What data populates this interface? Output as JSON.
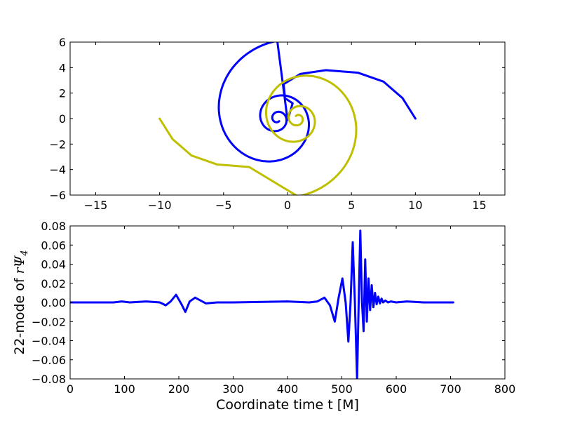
{
  "chart_data": [
    {
      "type": "line",
      "title": "",
      "xlabel": "",
      "ylabel": "",
      "xlim": [
        -17,
        17
      ],
      "ylim": [
        -6,
        6
      ],
      "xticks": [
        -15,
        -10,
        -5,
        0,
        5,
        10,
        15
      ],
      "xtick_labels": [
        "−15",
        "−10",
        "−5",
        "0",
        "5",
        "10",
        "15"
      ],
      "yticks": [
        -6,
        -4,
        -2,
        0,
        2,
        4,
        6
      ],
      "ytick_labels": [
        "−6",
        "−4",
        "−2",
        "0",
        "2",
        "4",
        "6"
      ],
      "grid": false,
      "series": [
        {
          "color": "#0000ff",
          "points": [
            [
              10.0,
              0.0
            ],
            [
              9.0,
              1.6
            ],
            [
              7.5,
              2.9
            ],
            [
              5.5,
              3.6
            ],
            [
              3.0,
              3.8
            ],
            [
              1.0,
              3.5
            ],
            [
              -0.3,
              2.7
            ],
            [
              -0.2,
              1.6
            ],
            [
              0.4,
              1.2
            ],
            [
              0.2,
              0.5
            ],
            [
              0.0,
              -0.1
            ]
          ],
          "loops": [
            {
              "center": [
                -0.8,
                0.0
              ],
              "r0": 6.1,
              "r1": 0.25,
              "turns": 2.6,
              "start_deg": 90
            }
          ]
        },
        {
          "color": "#bfbf00",
          "points": [
            [
              -10.0,
              0.0
            ],
            [
              -9.0,
              -1.6
            ],
            [
              -7.5,
              -2.9
            ],
            [
              -5.5,
              -3.6
            ],
            [
              -3.0,
              -3.8
            ]
          ],
          "loops": [
            {
              "center": [
                0.8,
                0.0
              ],
              "r0": 6.1,
              "r1": 0.25,
              "turns": 2.6,
              "start_deg": 270
            }
          ]
        }
      ]
    },
    {
      "type": "line",
      "title": "",
      "xlabel": "Coordinate time t [M]",
      "ylabel_prefix": "22-mode of ",
      "ylabel_math": "rΨ",
      "ylabel_sub": "4",
      "xlim": [
        0,
        800
      ],
      "ylim": [
        -0.08,
        0.08
      ],
      "xticks": [
        0,
        100,
        200,
        300,
        400,
        500,
        600,
        700,
        800
      ],
      "xtick_labels": [
        "0",
        "100",
        "200",
        "300",
        "400",
        "500",
        "600",
        "700",
        "800"
      ],
      "yticks": [
        -0.08,
        -0.06,
        -0.04,
        -0.02,
        0.0,
        0.02,
        0.04,
        0.06,
        0.08
      ],
      "ytick_labels": [
        "−0.08",
        "−0.06",
        "−0.04",
        "−0.02",
        "0.00",
        "0.02",
        "0.04",
        "0.06",
        "0.08"
      ],
      "grid": false,
      "series": [
        {
          "color": "#0000ff",
          "x": [
            0,
            80,
            95,
            110,
            140,
            165,
            176,
            185,
            195,
            205,
            212,
            220,
            230,
            240,
            250,
            270,
            300,
            400,
            440,
            455,
            468,
            478,
            487,
            494,
            501,
            507,
            512,
            516,
            520,
            524,
            528,
            531,
            534,
            537,
            540,
            543,
            546,
            549,
            552,
            555,
            558,
            561,
            564,
            567,
            570,
            573,
            576,
            580,
            585,
            590,
            600,
            620,
            650,
            705
          ],
          "y": [
            0.0,
            0.0,
            0.001,
            0.0,
            0.001,
            0.0,
            -0.003,
            0.001,
            0.008,
            -0.002,
            -0.01,
            0.001,
            0.005,
            0.002,
            -0.001,
            0.0,
            0.0,
            0.001,
            0.0,
            0.001,
            0.005,
            -0.003,
            -0.02,
            0.005,
            0.025,
            0.0,
            -0.041,
            0.0,
            0.063,
            0.0,
            -0.08,
            0.0,
            0.075,
            0.0,
            -0.03,
            0.045,
            -0.02,
            0.025,
            -0.008,
            0.018,
            -0.005,
            0.01,
            -0.002,
            0.006,
            -0.001,
            0.004,
            0.0,
            0.002,
            0.0,
            0.001,
            0.0,
            0.001,
            0.0,
            0.0
          ]
        }
      ]
    }
  ]
}
